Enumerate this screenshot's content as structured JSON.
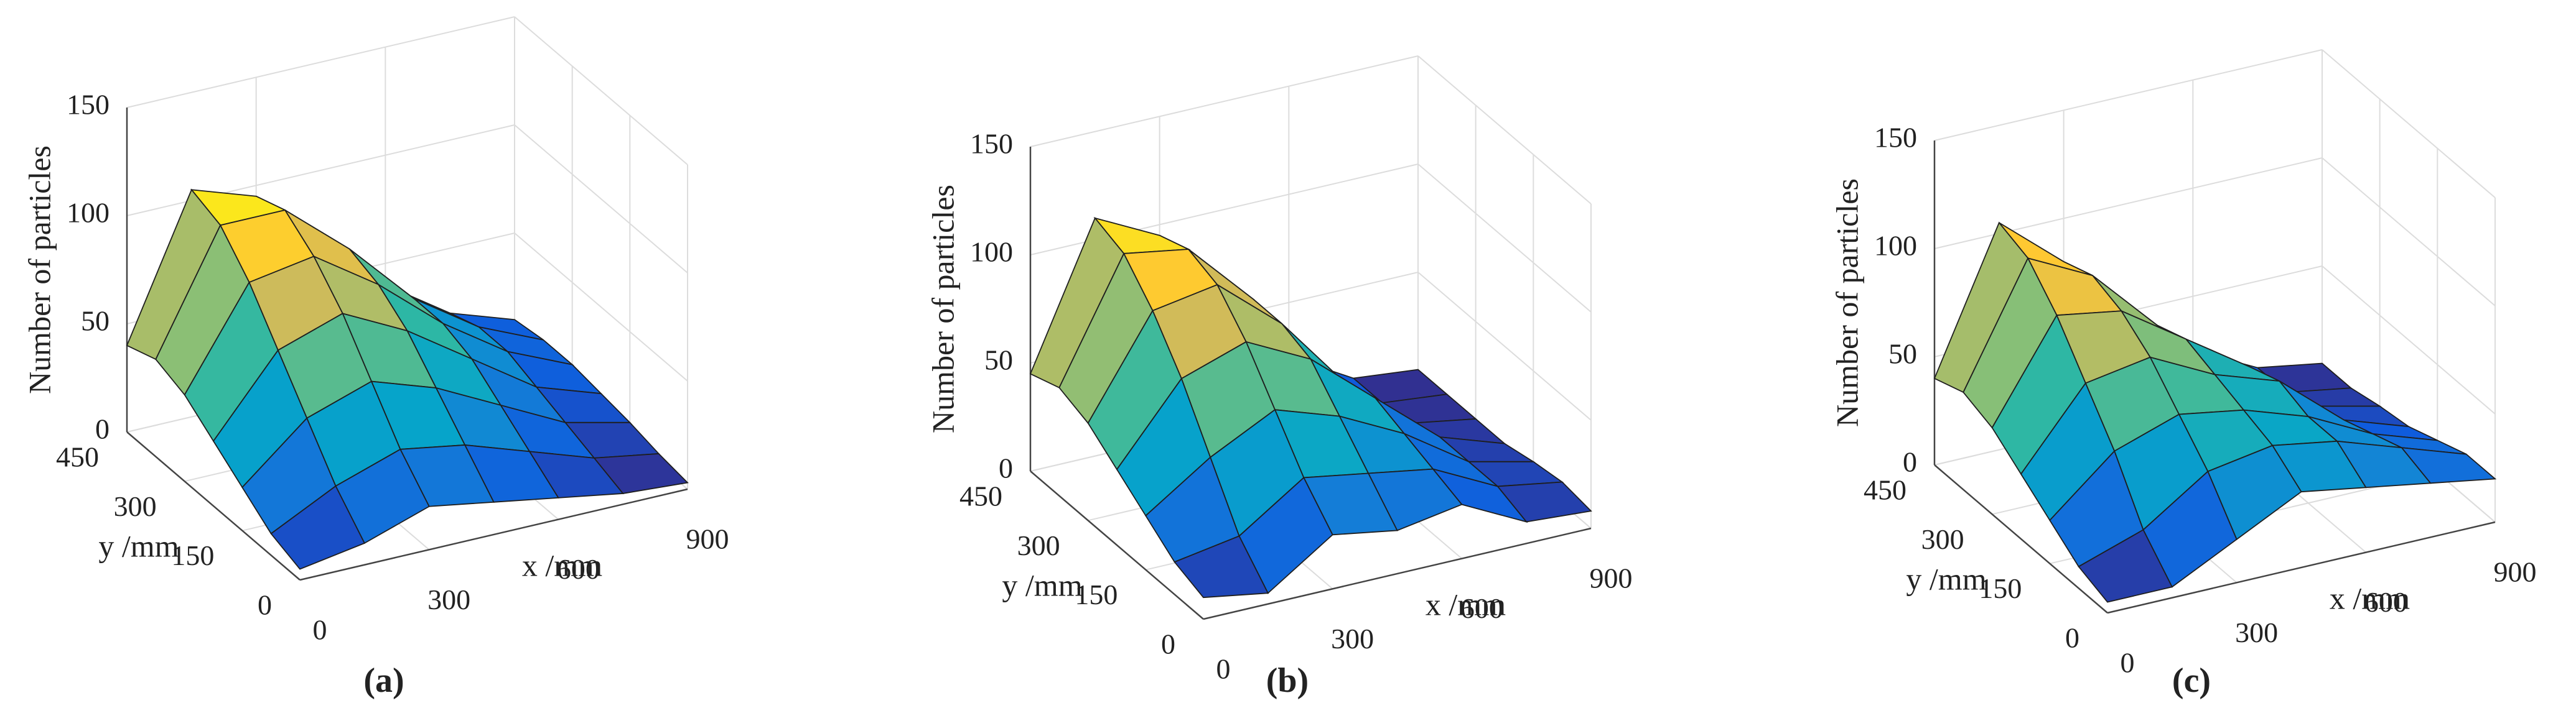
{
  "chart_data": [
    {
      "type": "surface",
      "caption": "(a)",
      "zlabel": "Number of particles",
      "ylabel": "y /mm",
      "xlabel": "x /mm",
      "colormap": "parula",
      "grid": true,
      "x": [
        0,
        150,
        300,
        450,
        600,
        750,
        900
      ],
      "y": [
        0,
        75,
        150,
        225,
        300,
        375,
        450
      ],
      "z": [
        [
          5,
          10,
          20,
          15,
          10,
          5,
          3
        ],
        [
          10,
          25,
          35,
          30,
          20,
          10,
          5
        ],
        [
          20,
          45,
          55,
          45,
          30,
          15,
          8
        ],
        [
          30,
          65,
          75,
          60,
          40,
          20,
          10
        ],
        [
          40,
          85,
          90,
          70,
          45,
          25,
          12
        ],
        [
          45,
          100,
          100,
          75,
          45,
          25,
          12
        ],
        [
          40,
          105,
          95,
          70,
          40,
          20,
          10
        ]
      ],
      "xlim": [
        0,
        900
      ],
      "ylim": [
        0,
        450
      ],
      "zlim": [
        0,
        150
      ],
      "xticks": [
        0,
        300,
        600,
        900
      ],
      "yticks": [
        0,
        150,
        300,
        450
      ],
      "zticks": [
        0,
        50,
        100,
        150
      ]
    },
    {
      "type": "surface",
      "caption": "(b)",
      "zlabel": "Number of particles",
      "ylabel": "y /mm",
      "xlabel": "x /mm",
      "colormap": "parula",
      "grid": true,
      "x": [
        0,
        150,
        300,
        450,
        600,
        750,
        900
      ],
      "y": [
        0,
        75,
        150,
        225,
        300,
        375,
        450
      ],
      "z": [
        [
          10,
          5,
          25,
          20,
          25,
          10,
          8
        ],
        [
          15,
          20,
          40,
          35,
          30,
          15,
          10
        ],
        [
          25,
          45,
          60,
          50,
          35,
          15,
          8
        ],
        [
          35,
          70,
          80,
          65,
          40,
          15,
          5
        ],
        [
          45,
          90,
          95,
          70,
          35,
          10,
          5
        ],
        [
          50,
          105,
          100,
          70,
          30,
          8,
          5
        ],
        [
          45,
          110,
          95,
          60,
          25,
          8,
          5
        ]
      ],
      "xlim": [
        0,
        900
      ],
      "ylim": [
        0,
        450
      ],
      "zlim": [
        0,
        150
      ],
      "xticks": [
        0,
        300,
        600,
        900
      ],
      "yticks": [
        0,
        150,
        300,
        450
      ],
      "zticks": [
        0,
        50,
        100,
        150
      ]
    },
    {
      "type": "surface",
      "caption": "(c)",
      "zlabel": "Number of particles",
      "ylabel": "y /mm",
      "xlabel": "x /mm",
      "colormap": "parula",
      "grid": true,
      "x": [
        0,
        150,
        300,
        450,
        600,
        750,
        900
      ],
      "y": [
        0,
        75,
        150,
        225,
        300,
        375,
        450
      ],
      "z": [
        [
          5,
          5,
          20,
          35,
          30,
          25,
          20
        ],
        [
          10,
          20,
          40,
          45,
          40,
          30,
          20
        ],
        [
          20,
          45,
          55,
          50,
          40,
          25,
          15
        ],
        [
          30,
          65,
          70,
          55,
          45,
          20,
          10
        ],
        [
          40,
          85,
          80,
          60,
          40,
          15,
          8
        ],
        [
          45,
          100,
          85,
          55,
          30,
          10,
          5
        ],
        [
          40,
          105,
          80,
          50,
          25,
          10,
          5
        ]
      ],
      "xlim": [
        0,
        900
      ],
      "ylim": [
        0,
        450
      ],
      "zlim": [
        0,
        150
      ],
      "xticks": [
        0,
        300,
        600,
        900
      ],
      "yticks": [
        0,
        150,
        300,
        450
      ],
      "zticks": [
        0,
        50,
        100,
        150
      ]
    }
  ]
}
